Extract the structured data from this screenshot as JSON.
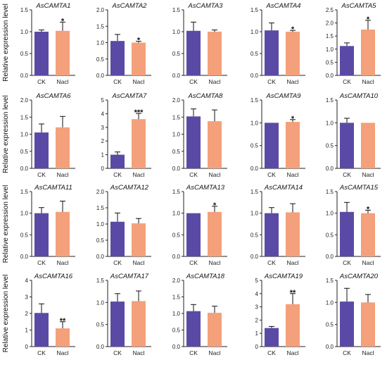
{
  "colors": {
    "ck": "#5b4aa5",
    "nacl": "#f4a07a",
    "axis": "#222222"
  },
  "chart_data": [
    {
      "type": "bar",
      "title": "AsCAMTA1",
      "ylabel": "Relative expression level",
      "categories": [
        "CK",
        "Nacl"
      ],
      "values": [
        1.0,
        1.02
      ],
      "errors": [
        0.04,
        0.2
      ],
      "significance": [
        "",
        "*"
      ],
      "ylim": [
        0,
        1.5
      ],
      "yticks": [
        "0.0",
        "0.5",
        "1.0",
        "1.5"
      ]
    },
    {
      "type": "bar",
      "title": "AsCAMTA2",
      "ylabel": "",
      "categories": [
        "CK",
        "Nacl"
      ],
      "values": [
        1.05,
        1.0
      ],
      "errors": [
        0.2,
        0.04
      ],
      "significance": [
        "",
        "*"
      ],
      "ylim": [
        0,
        2.0
      ],
      "yticks": [
        "0.0",
        "0.5",
        "1.0",
        "1.5",
        "2.0"
      ]
    },
    {
      "type": "bar",
      "title": "AsCAMTA3",
      "ylabel": "",
      "categories": [
        "CK",
        "Nacl"
      ],
      "values": [
        1.02,
        1.0
      ],
      "errors": [
        0.2,
        0.04
      ],
      "significance": [
        "",
        ""
      ],
      "ylim": [
        0,
        1.5
      ],
      "yticks": [
        "0.0",
        "0.5",
        "1.0",
        "1.5"
      ]
    },
    {
      "type": "bar",
      "title": "AsCAMTA4",
      "ylabel": "",
      "categories": [
        "CK",
        "Nacl"
      ],
      "values": [
        1.03,
        1.0
      ],
      "errors": [
        0.17,
        0.03
      ],
      "significance": [
        "",
        "*"
      ],
      "ylim": [
        0,
        1.5
      ],
      "yticks": [
        "0.0",
        "0.5",
        "1.0",
        "1.5"
      ]
    },
    {
      "type": "bar",
      "title": "AsCAMTA5",
      "ylabel": "",
      "categories": [
        "CK",
        "Nacl"
      ],
      "values": [
        1.12,
        1.75
      ],
      "errors": [
        0.12,
        0.35
      ],
      "significance": [
        "",
        "*"
      ],
      "ylim": [
        0,
        2.5
      ],
      "yticks": [
        "0.0",
        "0.5",
        "1.0",
        "1.5",
        "2.0",
        "2.5"
      ]
    },
    {
      "type": "bar",
      "title": "AsCAMTA6",
      "ylabel": "Relative expression level",
      "categories": [
        "CK",
        "Nacl"
      ],
      "values": [
        1.05,
        1.2
      ],
      "errors": [
        0.25,
        0.32
      ],
      "significance": [
        "",
        ""
      ],
      "ylim": [
        0,
        2.0
      ],
      "yticks": [
        "0.0",
        "0.5",
        "1.0",
        "1.5",
        "2.0"
      ]
    },
    {
      "type": "bar",
      "title": "AsCAMTA7",
      "ylabel": "",
      "categories": [
        "CK",
        "Nacl"
      ],
      "values": [
        1.0,
        3.6
      ],
      "errors": [
        0.2,
        0.42
      ],
      "significance": [
        "",
        "***"
      ],
      "ylim": [
        0,
        5
      ],
      "yticks": [
        "0",
        "1",
        "2",
        "3",
        "4",
        "5"
      ]
    },
    {
      "type": "bar",
      "title": "AsCAMTA8",
      "ylabel": "",
      "categories": [
        "CK",
        "Nacl"
      ],
      "values": [
        1.52,
        1.38
      ],
      "errors": [
        0.22,
        0.33
      ],
      "significance": [
        "",
        ""
      ],
      "ylim": [
        0,
        2.0
      ],
      "yticks": [
        "0.0",
        "0.5",
        "1.0",
        "1.5",
        "2.0"
      ]
    },
    {
      "type": "bar",
      "title": "AsCAMTA9",
      "ylabel": "",
      "categories": [
        "CK",
        "Nacl"
      ],
      "values": [
        1.0,
        1.02
      ],
      "errors": [
        0.0,
        0.05
      ],
      "significance": [
        "",
        "*"
      ],
      "ylim": [
        0,
        1.5
      ],
      "yticks": [
        "0.0",
        "0.5",
        "1.0",
        "1.5"
      ]
    },
    {
      "type": "bar",
      "title": "AsCAMTA10",
      "ylabel": "",
      "categories": [
        "CK",
        "Nacl"
      ],
      "values": [
        1.0,
        1.0
      ],
      "errors": [
        0.1,
        0.0
      ],
      "significance": [
        "",
        ""
      ],
      "ylim": [
        0,
        1.5
      ],
      "yticks": [
        "0.0",
        "0.5",
        "1.0",
        "1.5"
      ]
    },
    {
      "type": "bar",
      "title": "AsCAMTA11",
      "ylabel": "Relative expression level",
      "categories": [
        "CK",
        "Nacl"
      ],
      "values": [
        1.0,
        1.03
      ],
      "errors": [
        0.13,
        0.25
      ],
      "significance": [
        "",
        ""
      ],
      "ylim": [
        0,
        1.5
      ],
      "yticks": [
        "0.0",
        "0.5",
        "1.0",
        "1.5"
      ]
    },
    {
      "type": "bar",
      "title": "AsCAMTA12",
      "ylabel": "",
      "categories": [
        "CK",
        "Nacl"
      ],
      "values": [
        1.07,
        1.02
      ],
      "errors": [
        0.27,
        0.15
      ],
      "significance": [
        "",
        ""
      ],
      "ylim": [
        0,
        2.0
      ],
      "yticks": [
        "0.0",
        "0.5",
        "1.0",
        "1.5",
        "2.0"
      ]
    },
    {
      "type": "bar",
      "title": "AsCAMTA13",
      "ylabel": "",
      "categories": [
        "CK",
        "Nacl"
      ],
      "values": [
        1.0,
        1.03
      ],
      "errors": [
        0.0,
        0.13
      ],
      "significance": [
        "",
        "*"
      ],
      "ylim": [
        0,
        1.5
      ],
      "yticks": [
        "0.0",
        "0.5",
        "1.0",
        "1.5"
      ]
    },
    {
      "type": "bar",
      "title": "AsCAMTA14",
      "ylabel": "",
      "categories": [
        "CK",
        "Nacl"
      ],
      "values": [
        1.0,
        1.02
      ],
      "errors": [
        0.13,
        0.2
      ],
      "significance": [
        "",
        ""
      ],
      "ylim": [
        0,
        1.5
      ],
      "yticks": [
        "0.0",
        "0.5",
        "1.0",
        "1.5"
      ]
    },
    {
      "type": "bar",
      "title": "AsCAMTA15",
      "ylabel": "",
      "categories": [
        "CK",
        "Nacl"
      ],
      "values": [
        1.03,
        1.0
      ],
      "errors": [
        0.22,
        0.07
      ],
      "significance": [
        "",
        "*"
      ],
      "ylim": [
        0,
        1.5
      ],
      "yticks": [
        "0.0",
        "0.5",
        "1.0",
        "1.5"
      ]
    },
    {
      "type": "bar",
      "title": "AsCAMTA16",
      "ylabel": "Relative expression level",
      "categories": [
        "CK",
        "Nacl"
      ],
      "values": [
        2.03,
        1.1
      ],
      "errors": [
        0.55,
        0.4
      ],
      "significance": [
        "",
        "**"
      ],
      "ylim": [
        0,
        4
      ],
      "yticks": [
        "0",
        "1",
        "2",
        "3",
        "4"
      ]
    },
    {
      "type": "bar",
      "title": "AsCAMTA17",
      "ylabel": "",
      "categories": [
        "CK",
        "Nacl"
      ],
      "values": [
        1.02,
        1.03
      ],
      "errors": [
        0.18,
        0.23
      ],
      "significance": [
        "",
        ""
      ],
      "ylim": [
        0,
        1.5
      ],
      "yticks": [
        "0.0",
        "0.5",
        "1.0",
        "1.5"
      ]
    },
    {
      "type": "bar",
      "title": "AsCAMTA18",
      "ylabel": "",
      "categories": [
        "CK",
        "Nacl"
      ],
      "values": [
        1.07,
        1.02
      ],
      "errors": [
        0.2,
        0.2
      ],
      "significance": [
        "",
        ""
      ],
      "ylim": [
        0,
        2.0
      ],
      "yticks": [
        "0.0",
        "0.5",
        "1.0",
        "1.5",
        "2.0"
      ]
    },
    {
      "type": "bar",
      "title": "AsCAMTA19",
      "ylabel": "",
      "categories": [
        "CK",
        "Nacl"
      ],
      "values": [
        1.4,
        3.2
      ],
      "errors": [
        0.12,
        0.8
      ],
      "significance": [
        "",
        "**"
      ],
      "ylim": [
        0,
        5
      ],
      "yticks": [
        "0",
        "1",
        "2",
        "3",
        "4",
        "5"
      ]
    },
    {
      "type": "bar",
      "title": "AsCAMTA20",
      "ylabel": "",
      "categories": [
        "CK",
        "Nacl"
      ],
      "values": [
        1.02,
        1.0
      ],
      "errors": [
        0.3,
        0.18
      ],
      "significance": [
        "",
        ""
      ],
      "ylim": [
        0,
        1.5
      ],
      "yticks": [
        "0.0",
        "0.5",
        "1.0",
        "1.5"
      ]
    }
  ]
}
